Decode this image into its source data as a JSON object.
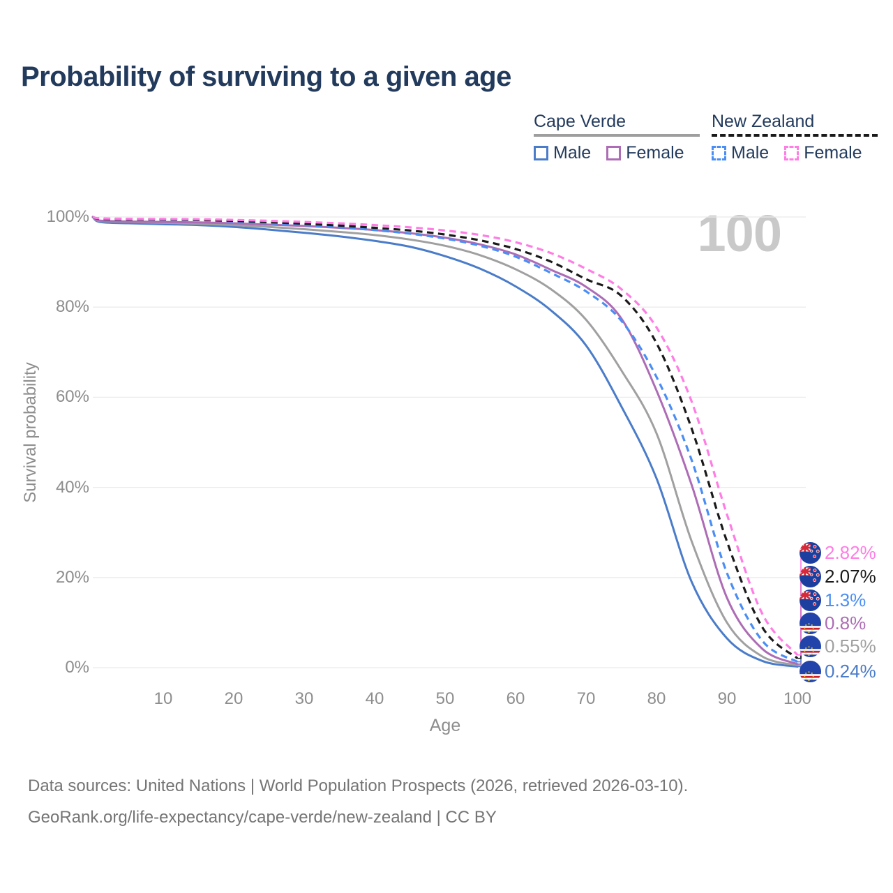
{
  "title": "Probability of surviving to a given age",
  "watermark": "100",
  "legend": {
    "groups": [
      {
        "label": "Cape Verde",
        "line_style": "solid",
        "underline_color": "#9e9e9e",
        "items": [
          {
            "label": "Male",
            "color": "#4a7cc9",
            "dashed": false
          },
          {
            "label": "Female",
            "color": "#ad6cb5",
            "dashed": false
          }
        ]
      },
      {
        "label": "New Zealand",
        "line_style": "dashed",
        "underline_color": "#1a1a1a",
        "items": [
          {
            "label": "Male",
            "color": "#4a8ef5",
            "dashed": true
          },
          {
            "label": "Female",
            "color": "#ff7de4",
            "dashed": true
          }
        ]
      }
    ]
  },
  "chart_data": {
    "type": "line",
    "title": "Probability of surviving to a given age",
    "xlabel": "Age",
    "ylabel": "Survival probability",
    "xlim": [
      0,
      100
    ],
    "ylim": [
      0,
      100
    ],
    "grid": "horizontal",
    "x_ticks": [
      10,
      20,
      30,
      40,
      50,
      60,
      70,
      80,
      90,
      100
    ],
    "x_tick_labels": [
      "10",
      "20",
      "30",
      "40",
      "50",
      "60",
      "70",
      "80",
      "90",
      "100"
    ],
    "y_ticks": [
      100,
      80,
      60,
      40,
      20,
      0
    ],
    "y_tick_labels": [
      "100%",
      "80%",
      "60%",
      "40%",
      "20%",
      "0%"
    ],
    "x": [
      0,
      1,
      5,
      10,
      15,
      20,
      25,
      30,
      35,
      40,
      45,
      50,
      55,
      60,
      65,
      70,
      75,
      80,
      85,
      90,
      95,
      100
    ],
    "series": [
      {
        "name": "Cape Verde Male",
        "country": "Cape Verde",
        "sex": "Male",
        "color": "#4a7cc9",
        "dashed": false,
        "end_label": "0.24%",
        "flag": "cape-verde",
        "values": [
          100,
          98.9,
          98.6,
          98.4,
          98.2,
          97.8,
          97.2,
          96.5,
          95.7,
          94.7,
          93.4,
          91.3,
          88.5,
          84.6,
          79.3,
          71.5,
          58,
          42,
          19,
          6.5,
          1.5,
          0.24
        ]
      },
      {
        "name": "Cape Verde Both sexes",
        "country": "Cape Verde",
        "sex": "Both",
        "color": "#a0a0a0",
        "dashed": false,
        "end_label": "0.55%",
        "flag": "cape-verde",
        "values": [
          100,
          99.1,
          98.9,
          98.7,
          98.5,
          98.2,
          97.8,
          97.3,
          96.7,
          96.0,
          95.0,
          93.6,
          91.5,
          88.4,
          84.0,
          77.2,
          66,
          52,
          28,
          10,
          2.5,
          0.55
        ]
      },
      {
        "name": "Cape Verde Female",
        "country": "Cape Verde",
        "sex": "Female",
        "color": "#ad6cb5",
        "dashed": false,
        "end_label": "0.8%",
        "flag": "cape-verde",
        "values": [
          100,
          99.2,
          99.0,
          98.9,
          98.8,
          98.6,
          98.3,
          98.0,
          97.6,
          97.1,
          96.4,
          95.4,
          93.9,
          91.7,
          88.3,
          84.5,
          77.5,
          61.5,
          40.5,
          15.5,
          4.2,
          0.8
        ]
      },
      {
        "name": "New Zealand Male",
        "country": "New Zealand",
        "sex": "Male",
        "color": "#4a8ef5",
        "dashed": true,
        "end_label": "1.3%",
        "flag": "new-zealand",
        "values": [
          100,
          99.6,
          99.5,
          99.4,
          99.3,
          99.0,
          98.6,
          98.2,
          97.7,
          97.1,
          96.3,
          95.2,
          93.6,
          91.2,
          87.6,
          83.5,
          77.0,
          64.5,
          46,
          21,
          6,
          1.3
        ]
      },
      {
        "name": "New Zealand Both sexes",
        "country": "New Zealand",
        "sex": "Both",
        "color": "#1a1a1a",
        "dashed": true,
        "end_label": "2.07%",
        "flag": "new-zealand",
        "values": [
          100,
          99.6,
          99.5,
          99.45,
          99.35,
          99.15,
          98.85,
          98.5,
          98.1,
          97.6,
          97.0,
          96.1,
          94.8,
          92.9,
          90.1,
          86.2,
          82.5,
          72,
          53,
          28,
          9,
          2.07
        ]
      },
      {
        "name": "New Zealand Female",
        "country": "New Zealand",
        "sex": "Female",
        "color": "#ff7de4",
        "dashed": true,
        "end_label": "2.82%",
        "flag": "new-zealand",
        "values": [
          100,
          99.7,
          99.6,
          99.55,
          99.5,
          99.35,
          99.15,
          98.9,
          98.6,
          98.2,
          97.7,
          97.0,
          96.0,
          94.4,
          92.0,
          88.5,
          84.0,
          75.5,
          59,
          34,
          12,
          2.82
        ]
      }
    ]
  },
  "footer": {
    "line1": "Data sources: United Nations | World Population Prospects (2026, retrieved 2026-03-10).",
    "line2": "GeoRank.org/life-expectancy/cape-verde/new-zealand | CC BY"
  }
}
